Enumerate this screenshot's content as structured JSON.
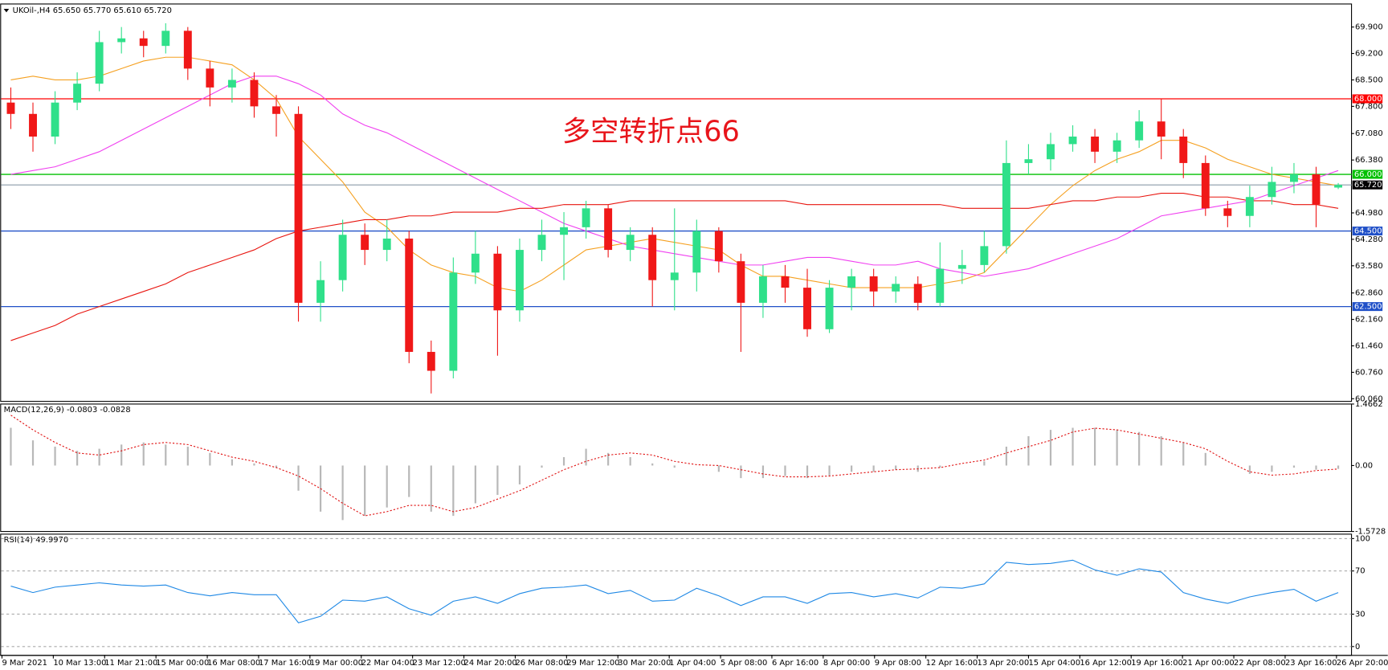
{
  "chart_data": [
    {
      "type": "candlestick",
      "title": "UKOil-,H4  65.650 65.770 65.610 65.720",
      "annotation": "多空转折点66",
      "up_color": "#2fe08a",
      "down_color": "#f01818",
      "open": [
        67.9,
        67.6,
        67.0,
        67.9,
        68.4,
        69.5,
        69.6,
        69.4,
        69.8,
        68.8,
        68.3,
        68.5,
        67.8,
        67.6,
        62.6,
        63.2,
        64.4,
        64.0,
        64.3,
        61.3,
        60.8,
        63.4,
        63.9,
        62.4,
        64.0,
        64.4,
        64.6,
        65.1,
        64.0,
        64.4,
        63.2,
        63.4,
        64.5,
        63.7,
        62.6,
        63.3,
        63.0,
        61.9,
        63.0,
        63.3,
        62.9,
        63.1,
        62.6,
        63.5,
        63.6,
        64.1,
        66.3,
        66.4,
        66.8,
        67.0,
        66.6,
        66.9,
        67.4,
        67.0,
        66.3,
        65.1,
        64.9,
        65.4,
        65.8,
        66.0,
        65.65
      ],
      "high": [
        68.3,
        67.9,
        68.2,
        68.7,
        69.8,
        69.9,
        69.8,
        70.0,
        69.9,
        69.0,
        68.8,
        68.7,
        68.1,
        67.8,
        63.7,
        64.8,
        64.7,
        64.8,
        64.5,
        61.6,
        63.8,
        64.5,
        64.1,
        64.3,
        64.8,
        65.0,
        65.3,
        65.2,
        64.6,
        64.6,
        65.1,
        64.8,
        64.6,
        63.9,
        63.6,
        63.6,
        63.5,
        63.2,
        63.5,
        63.5,
        63.3,
        63.3,
        64.2,
        64.0,
        64.5,
        66.9,
        66.8,
        67.1,
        67.3,
        67.2,
        67.1,
        67.7,
        68.0,
        67.2,
        66.5,
        65.3,
        65.7,
        66.2,
        66.3,
        66.2,
        65.77
      ],
      "low": [
        67.2,
        66.6,
        66.8,
        67.7,
        68.2,
        69.2,
        69.1,
        69.2,
        68.5,
        67.8,
        67.9,
        67.5,
        67.0,
        62.1,
        62.1,
        62.9,
        63.6,
        63.7,
        61.0,
        60.2,
        60.6,
        63.1,
        61.2,
        62.1,
        63.7,
        63.2,
        64.3,
        63.8,
        63.7,
        62.5,
        62.4,
        62.9,
        63.4,
        61.3,
        62.2,
        62.6,
        61.7,
        61.8,
        62.4,
        62.5,
        62.6,
        62.4,
        62.5,
        63.1,
        63.4,
        63.9,
        66.0,
        66.1,
        66.6,
        66.3,
        66.3,
        66.7,
        66.4,
        65.9,
        64.9,
        64.6,
        64.6,
        65.2,
        65.5,
        64.6,
        65.61
      ],
      "close": [
        67.6,
        67.0,
        67.9,
        68.4,
        69.5,
        69.6,
        69.4,
        69.8,
        68.8,
        68.3,
        68.5,
        67.8,
        67.6,
        62.6,
        63.2,
        64.4,
        64.0,
        64.3,
        61.3,
        60.8,
        63.4,
        63.9,
        62.4,
        64.0,
        64.4,
        64.6,
        65.1,
        64.0,
        64.4,
        63.2,
        63.4,
        64.5,
        63.7,
        62.6,
        63.3,
        63.0,
        61.9,
        63.0,
        63.3,
        62.9,
        63.1,
        62.6,
        63.5,
        63.6,
        64.1,
        66.3,
        66.4,
        66.8,
        67.0,
        66.6,
        66.9,
        67.4,
        67.0,
        66.3,
        65.1,
        64.9,
        65.4,
        65.8,
        66.0,
        65.2,
        65.72
      ],
      "series": [
        {
          "color": "#f5a020",
          "values": [
            68.5,
            68.6,
            68.5,
            68.5,
            68.6,
            68.8,
            69.0,
            69.1,
            69.1,
            69.0,
            68.9,
            68.5,
            68.0,
            67.0,
            66.4,
            65.8,
            65.0,
            64.6,
            64.0,
            63.6,
            63.4,
            63.3,
            63.0,
            62.9,
            63.2,
            63.6,
            64.0,
            64.1,
            64.2,
            64.3,
            64.2,
            64.1,
            64.0,
            63.6,
            63.3,
            63.3,
            63.2,
            63.1,
            63.0,
            63.0,
            63.0,
            63.0,
            63.1,
            63.2,
            63.4,
            64.0,
            64.6,
            65.2,
            65.7,
            66.1,
            66.4,
            66.6,
            66.9,
            66.9,
            66.7,
            66.4,
            66.2,
            66.0,
            65.9,
            65.8,
            65.7
          ]
        },
        {
          "color": "#f040f0",
          "values": [
            66.0,
            66.1,
            66.2,
            66.4,
            66.6,
            66.9,
            67.2,
            67.5,
            67.8,
            68.1,
            68.4,
            68.6,
            68.6,
            68.4,
            68.1,
            67.6,
            67.3,
            67.1,
            66.8,
            66.5,
            66.2,
            65.9,
            65.6,
            65.3,
            65.0,
            64.7,
            64.5,
            64.3,
            64.1,
            64.0,
            63.9,
            63.8,
            63.7,
            63.6,
            63.6,
            63.7,
            63.8,
            63.8,
            63.7,
            63.6,
            63.6,
            63.7,
            63.5,
            63.4,
            63.3,
            63.4,
            63.5,
            63.7,
            63.9,
            64.1,
            64.3,
            64.6,
            64.9,
            65.0,
            65.1,
            65.2,
            65.3,
            65.5,
            65.7,
            65.9,
            66.1
          ]
        },
        {
          "color": "#e8150f",
          "values": [
            61.6,
            61.8,
            62.0,
            62.3,
            62.5,
            62.7,
            62.9,
            63.1,
            63.4,
            63.6,
            63.8,
            64.0,
            64.3,
            64.5,
            64.6,
            64.7,
            64.8,
            64.8,
            64.9,
            64.9,
            65.0,
            65.0,
            65.0,
            65.1,
            65.1,
            65.2,
            65.2,
            65.2,
            65.3,
            65.3,
            65.3,
            65.3,
            65.3,
            65.3,
            65.3,
            65.3,
            65.2,
            65.2,
            65.2,
            65.2,
            65.2,
            65.2,
            65.2,
            65.1,
            65.1,
            65.1,
            65.1,
            65.2,
            65.3,
            65.3,
            65.4,
            65.4,
            65.5,
            65.5,
            65.4,
            65.4,
            65.3,
            65.3,
            65.2,
            65.2,
            65.1
          ]
        }
      ],
      "levels": [
        {
          "value": 68,
          "label": "68.000",
          "color": "#ff0000"
        },
        {
          "value": 66,
          "label": "66.000",
          "color": "#00c000"
        },
        {
          "value": 64.5,
          "label": "64.500",
          "color": "#2050c8"
        },
        {
          "value": 62.5,
          "label": "62.500",
          "color": "#2050c8"
        }
      ],
      "last": {
        "value": 65.72,
        "label": "65.720"
      },
      "ylim": [
        59.99,
        70.51
      ],
      "yticks": [
        {
          "value": 69.9,
          "label": "69.900"
        },
        {
          "value": 69.2,
          "label": "69.200"
        },
        {
          "value": 68.5,
          "label": "68.500"
        },
        {
          "value": 67.8,
          "label": "67.800"
        },
        {
          "value": 67.08,
          "label": "67.080"
        },
        {
          "value": 66.38,
          "label": "66.380"
        },
        {
          "value": 64.98,
          "label": "64.980"
        },
        {
          "value": 64.28,
          "label": "64.280"
        },
        {
          "value": 63.58,
          "label": "63.580"
        },
        {
          "value": 62.86,
          "label": "62.860"
        },
        {
          "value": 62.16,
          "label": "62.160"
        },
        {
          "value": 61.46,
          "label": "61.460"
        },
        {
          "value": 60.76,
          "label": "60.760"
        },
        {
          "value": 60.06,
          "label": "60.060"
        }
      ],
      "x_labels": [
        "9 Mar 2021",
        "10 Mar 13:00",
        "11 Mar 21:00",
        "15 Mar 00:00",
        "16 Mar 08:00",
        "17 Mar 16:00",
        "19 Mar 00:00",
        "22 Mar 04:00",
        "23 Mar 12:00",
        "24 Mar 20:00",
        "26 Mar 08:00",
        "29 Mar 12:00",
        "30 Mar 20:00",
        "1 Apr 04:00",
        "5 Apr 08:00",
        "6 Apr 16:00",
        "8 Apr 00:00",
        "9 Apr 08:00",
        "12 Apr 16:00",
        "13 Apr 20:00",
        "15 Apr 04:00",
        "16 Apr 12:00",
        "19 Apr 16:00",
        "21 Apr 00:00",
        "22 Apr 08:00",
        "23 Apr 16:00",
        "26 Apr 20:00"
      ]
    },
    {
      "type": "macd",
      "title": "MACD(12,26,9) -0.0803 -0.0828",
      "hist_color": "#b8b8b8",
      "signal_color": "#e01010",
      "values": [
        0.9,
        0.6,
        0.45,
        0.35,
        0.4,
        0.5,
        0.55,
        0.5,
        0.45,
        0.3,
        0.15,
        0.05,
        -0.05,
        -0.6,
        -1.1,
        -1.3,
        -1.2,
        -1.0,
        -0.75,
        -1.1,
        -1.2,
        -0.9,
        -0.7,
        -0.45,
        -0.05,
        0.2,
        0.4,
        0.3,
        0.2,
        0.05,
        -0.05,
        0.0,
        -0.15,
        -0.3,
        -0.3,
        -0.25,
        -0.3,
        -0.25,
        -0.15,
        -0.15,
        -0.1,
        -0.15,
        -0.05,
        0.0,
        0.1,
        0.45,
        0.7,
        0.85,
        0.9,
        0.9,
        0.85,
        0.8,
        0.7,
        0.55,
        0.3,
        0.0,
        -0.2,
        -0.15,
        -0.05,
        -0.1,
        -0.0803
      ],
      "signal": [
        1.2,
        0.85,
        0.55,
        0.3,
        0.25,
        0.35,
        0.5,
        0.55,
        0.5,
        0.35,
        0.2,
        0.1,
        -0.05,
        -0.25,
        -0.55,
        -0.9,
        -1.2,
        -1.1,
        -0.95,
        -0.95,
        -1.1,
        -1.0,
        -0.8,
        -0.6,
        -0.35,
        -0.1,
        0.1,
        0.25,
        0.3,
        0.25,
        0.1,
        0.02,
        0.0,
        -0.1,
        -0.2,
        -0.27,
        -0.27,
        -0.25,
        -0.2,
        -0.15,
        -0.1,
        -0.08,
        -0.05,
        0.05,
        0.13,
        0.3,
        0.45,
        0.6,
        0.8,
        0.89,
        0.85,
        0.75,
        0.65,
        0.55,
        0.4,
        0.1,
        -0.15,
        -0.23,
        -0.2,
        -0.12,
        -0.0828
      ],
      "ylim": [
        -1.5728,
        1.4662
      ],
      "yticks": [
        1.4662,
        {
          "value": 0,
          "label": "0.00"
        },
        -1.5728
      ]
    },
    {
      "type": "line",
      "title": "RSI(14) 49.9970",
      "color": "#1e88e5",
      "values": [
        56,
        50,
        55,
        57,
        59,
        57,
        56,
        57,
        50,
        47,
        50,
        48,
        48,
        22,
        28,
        43,
        42,
        46,
        35,
        29,
        42,
        46,
        40,
        49,
        54,
        55,
        57,
        49,
        52,
        42,
        43,
        54,
        47,
        38,
        46,
        46,
        40,
        49,
        50,
        46,
        49,
        45,
        55,
        54,
        58,
        78,
        76,
        77,
        80,
        71,
        66,
        72,
        69,
        50,
        44,
        40,
        46,
        50,
        53,
        42,
        49.997
      ],
      "ylim": [
        -8.2,
        104.1
      ],
      "yticks": [
        100,
        70,
        30,
        0
      ]
    }
  ]
}
